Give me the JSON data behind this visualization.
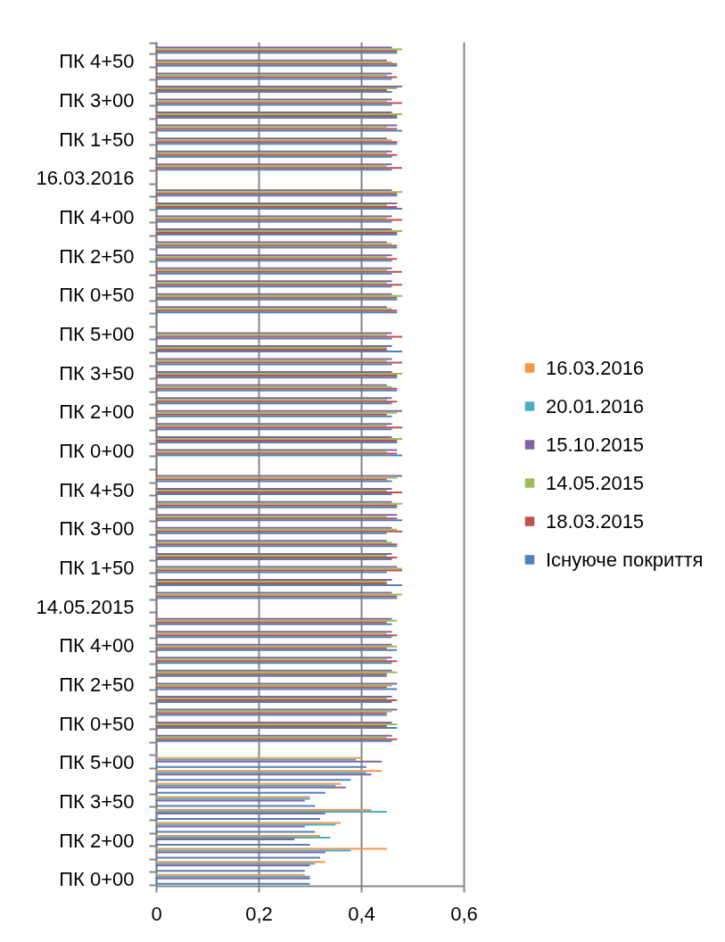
{
  "chart_data": {
    "type": "bar",
    "orientation": "horizontal",
    "categories": [
      null,
      "ПК 4+50",
      null,
      null,
      "ПК 3+00",
      null,
      null,
      "ПК 1+50",
      null,
      null,
      "16.03.2016",
      null,
      null,
      "ПК 4+00",
      null,
      null,
      "ПК 2+50",
      null,
      null,
      "ПК 0+50",
      null,
      null,
      "ПК 5+00",
      null,
      null,
      "ПК 3+50",
      null,
      null,
      "ПК 2+00",
      null,
      null,
      "ПК 0+00",
      null,
      null,
      "ПК 4+50",
      null,
      null,
      "ПК 3+00",
      null,
      null,
      "ПК 1+50",
      null,
      null,
      "14.05.2015",
      null,
      null,
      "ПК 4+00",
      null,
      null,
      "ПК 2+50",
      null,
      null,
      "ПК 0+50",
      null,
      null,
      "ПК 5+00",
      null,
      null,
      "ПК 3+50",
      null,
      null,
      "ПК 2+00",
      null,
      null,
      "ПК 0+00"
    ],
    "series": [
      {
        "name": "16.03.2016",
        "color": "#f79646",
        "values": [
          null,
          null,
          null,
          null,
          null,
          null,
          null,
          null,
          null,
          null,
          null,
          null,
          null,
          null,
          null,
          null,
          null,
          null,
          null,
          null,
          null,
          null,
          null,
          null,
          null,
          null,
          null,
          null,
          null,
          null,
          null,
          null,
          null,
          null,
          null,
          null,
          null,
          null,
          null,
          null,
          null,
          null,
          null,
          null,
          null,
          null,
          null,
          null,
          null,
          null,
          null,
          null,
          null,
          null,
          null,
          0.4,
          0.44,
          0.36,
          0.3,
          0.42,
          0.36,
          0.32,
          0.45,
          0.33,
          0.29
        ]
      },
      {
        "name": "20.01.2016",
        "color": "#4bacc6",
        "values": [
          null,
          null,
          null,
          null,
          null,
          null,
          null,
          null,
          null,
          null,
          null,
          null,
          null,
          null,
          null,
          null,
          null,
          null,
          null,
          null,
          null,
          null,
          null,
          null,
          null,
          null,
          null,
          null,
          null,
          null,
          null,
          null,
          null,
          null,
          null,
          null,
          null,
          null,
          null,
          null,
          null,
          null,
          null,
          null,
          null,
          null,
          null,
          null,
          null,
          null,
          null,
          null,
          null,
          null,
          null,
          0.39,
          0.41,
          0.35,
          0.3,
          0.45,
          0.35,
          0.34,
          0.38,
          0.31,
          0.3
        ]
      },
      {
        "name": "15.10.2015",
        "color": "#8064a2",
        "values": [
          0.46,
          0.45,
          0.46,
          0.48,
          0.46,
          0.46,
          0.47,
          0.45,
          0.46,
          0.46,
          null,
          0.46,
          0.47,
          0.46,
          0.46,
          0.45,
          0.46,
          0.46,
          0.46,
          0.46,
          0.45,
          null,
          0.46,
          0.46,
          0.46,
          0.46,
          0.45,
          0.46,
          0.48,
          0.46,
          0.46,
          0.47,
          null,
          0.48,
          0.46,
          0.46,
          0.47,
          0.46,
          0.45,
          0.46,
          0.47,
          0.46,
          0.46,
          null,
          0.46,
          0.46,
          0.46,
          0.46,
          0.46,
          0.47,
          0.46,
          0.47,
          0.46,
          0.46,
          null,
          0.44,
          0.42,
          0.37,
          0.29,
          0.33,
          0.29,
          0.27,
          0.33,
          0.3,
          0.3
        ]
      },
      {
        "name": "14.05.2015",
        "color": "#9bbb59",
        "values": [
          0.48,
          0.46,
          0.45,
          0.47,
          0.45,
          0.48,
          0.45,
          0.46,
          0.45,
          0.45,
          null,
          0.48,
          0.45,
          0.45,
          0.48,
          0.46,
          0.45,
          0.45,
          0.45,
          0.48,
          0.46,
          null,
          0.45,
          0.45,
          0.45,
          0.48,
          0.46,
          0.45,
          0.47,
          0.45,
          0.48,
          0.45,
          null,
          0.47,
          0.45,
          0.48,
          0.45,
          0.47,
          0.46,
          0.45,
          0.48,
          0.45,
          0.48,
          null,
          0.47,
          0.45,
          0.47,
          0.45,
          0.47,
          0.46,
          0.45,
          0.46,
          0.47,
          0.45,
          null,
          null,
          null,
          null,
          null,
          null,
          null,
          null,
          null,
          null,
          null
        ]
      },
      {
        "name": "18.03.2015",
        "color": "#c0504d",
        "values": [
          0.47,
          0.47,
          0.47,
          0.45,
          0.48,
          0.47,
          0.47,
          0.47,
          0.47,
          0.48,
          null,
          0.47,
          0.47,
          0.48,
          0.47,
          0.47,
          0.47,
          0.48,
          0.48,
          0.47,
          0.47,
          null,
          0.48,
          0.45,
          0.48,
          0.47,
          0.47,
          0.47,
          0.45,
          0.48,
          0.47,
          0.47,
          null,
          0.45,
          0.48,
          0.47,
          0.47,
          0.48,
          0.47,
          0.47,
          0.48,
          0.45,
          0.47,
          null,
          0.45,
          0.47,
          0.45,
          0.47,
          0.45,
          0.45,
          0.47,
          0.45,
          0.45,
          0.47,
          null,
          null,
          null,
          null,
          null,
          null,
          null,
          null,
          null,
          null,
          null
        ]
      },
      {
        "name": "Існуюче покриття",
        "color": "#4f81bd",
        "values": [
          0.47,
          0.47,
          0.46,
          0.46,
          0.46,
          0.47,
          0.48,
          0.47,
          0.46,
          0.46,
          null,
          0.47,
          0.48,
          0.46,
          0.47,
          0.47,
          0.46,
          0.46,
          0.46,
          0.47,
          0.47,
          null,
          0.46,
          0.48,
          0.46,
          0.47,
          0.47,
          0.46,
          0.46,
          0.46,
          0.47,
          0.48,
          null,
          0.46,
          0.46,
          0.47,
          0.48,
          0.45,
          0.47,
          0.46,
          0.45,
          0.48,
          0.47,
          null,
          0.46,
          0.46,
          0.47,
          0.46,
          0.45,
          0.47,
          0.46,
          0.45,
          0.47,
          0.46,
          null,
          0.41,
          0.38,
          0.33,
          0.31,
          0.32,
          0.31,
          0.3,
          0.32,
          0.29,
          0.3
        ]
      }
    ],
    "xlim": [
      0,
      0.6
    ],
    "xticks": [
      0,
      {
        "value": 0.2,
        "label": "0,2"
      },
      {
        "value": 0.4,
        "label": "0,4"
      },
      {
        "value": 0.6,
        "label": "0,6"
      }
    ],
    "grid": "x",
    "legend": "right"
  }
}
